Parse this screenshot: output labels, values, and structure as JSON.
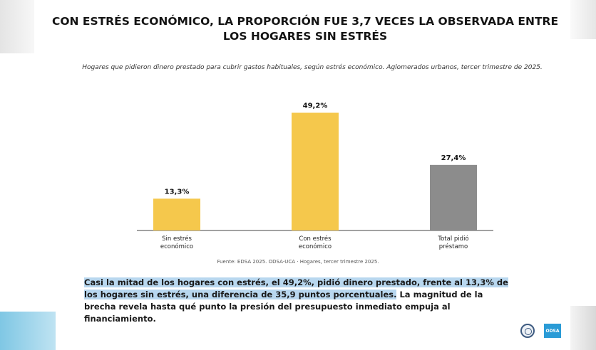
{
  "title": "CON ESTRÉS ECONÓMICO, LA PROPORCIÓN FUE 3,7 VECES LA OBSERVADA ENTRE LOS HOGARES SIN ESTRÉS",
  "subtitle": "Hogares que pidieron dinero prestado para cubrir gastos habituales, según estrés económico. Aglomerados urbanos, tercer trimestre de 2025.",
  "source": "Fuente: EDSA 2025. ODSA-UCA · Hogares, tercer trimestre 2025.",
  "body": {
    "highlight": "Casi la mitad de los hogares con estrés, el 49,2%, pidió dinero prestado, frente al 13,3% de los hogares sin estrés, una diferencia de 35,9 puntos porcentuales.",
    "rest": " La magnitud de la brecha revela hasta qué punto la presión del presupuesto inmediato empuja al financiamiento."
  },
  "logo_text": "ODSA",
  "colors": {
    "accent": "#f5c84c",
    "gray": "#8c8c8c",
    "highlight": "#b8d7ef"
  },
  "icons": [
    "university-seal-icon",
    "odsa-logo-icon"
  ],
  "chart_data": {
    "type": "bar",
    "categories": [
      "Sin estrés\neconómico",
      "Con estrés\neconómico",
      "Total pidió\npréstamo"
    ],
    "values": [
      13.3,
      49.2,
      27.4
    ],
    "value_labels": [
      "13,3%",
      "49,2%",
      "27,4%"
    ],
    "bar_colors": [
      "#f5c84c",
      "#f5c84c",
      "#8c8c8c"
    ],
    "ylim": [
      0,
      55
    ],
    "xlabel": "",
    "ylabel": "",
    "grid": false,
    "legend": "none"
  }
}
